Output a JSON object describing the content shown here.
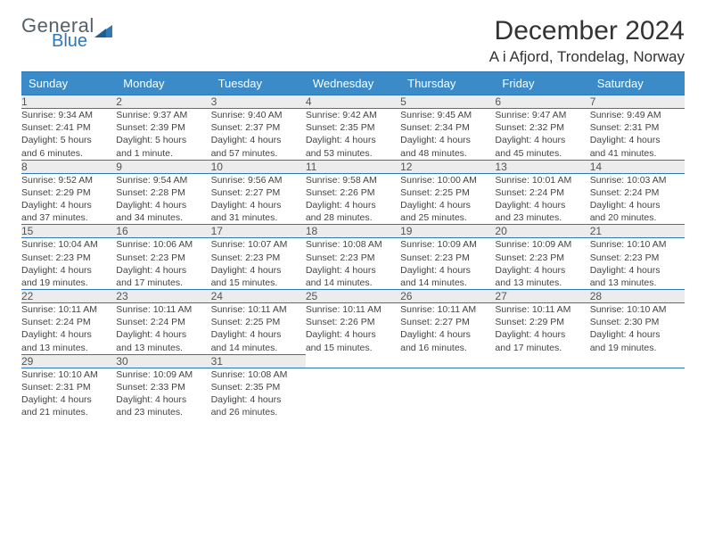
{
  "logo": {
    "word1": "General",
    "word2": "Blue"
  },
  "title": "December 2024",
  "location": "A i Afjord, Trondelag, Norway",
  "colors": {
    "header_bg": "#3b8bc9",
    "header_text": "#ffffff",
    "rule": "#2f77b9",
    "daynum_bg": "#ececec",
    "body_text": "#444444",
    "logo_gray": "#55606a",
    "logo_blue": "#2f77b9",
    "page_bg": "#ffffff"
  },
  "day_headers": [
    "Sunday",
    "Monday",
    "Tuesday",
    "Wednesday",
    "Thursday",
    "Friday",
    "Saturday"
  ],
  "weeks": [
    [
      {
        "n": "1",
        "sr": "Sunrise: 9:34 AM",
        "ss": "Sunset: 2:41 PM",
        "d1": "Daylight: 5 hours",
        "d2": "and 6 minutes."
      },
      {
        "n": "2",
        "sr": "Sunrise: 9:37 AM",
        "ss": "Sunset: 2:39 PM",
        "d1": "Daylight: 5 hours",
        "d2": "and 1 minute."
      },
      {
        "n": "3",
        "sr": "Sunrise: 9:40 AM",
        "ss": "Sunset: 2:37 PM",
        "d1": "Daylight: 4 hours",
        "d2": "and 57 minutes."
      },
      {
        "n": "4",
        "sr": "Sunrise: 9:42 AM",
        "ss": "Sunset: 2:35 PM",
        "d1": "Daylight: 4 hours",
        "d2": "and 53 minutes."
      },
      {
        "n": "5",
        "sr": "Sunrise: 9:45 AM",
        "ss": "Sunset: 2:34 PM",
        "d1": "Daylight: 4 hours",
        "d2": "and 48 minutes."
      },
      {
        "n": "6",
        "sr": "Sunrise: 9:47 AM",
        "ss": "Sunset: 2:32 PM",
        "d1": "Daylight: 4 hours",
        "d2": "and 45 minutes."
      },
      {
        "n": "7",
        "sr": "Sunrise: 9:49 AM",
        "ss": "Sunset: 2:31 PM",
        "d1": "Daylight: 4 hours",
        "d2": "and 41 minutes."
      }
    ],
    [
      {
        "n": "8",
        "sr": "Sunrise: 9:52 AM",
        "ss": "Sunset: 2:29 PM",
        "d1": "Daylight: 4 hours",
        "d2": "and 37 minutes."
      },
      {
        "n": "9",
        "sr": "Sunrise: 9:54 AM",
        "ss": "Sunset: 2:28 PM",
        "d1": "Daylight: 4 hours",
        "d2": "and 34 minutes."
      },
      {
        "n": "10",
        "sr": "Sunrise: 9:56 AM",
        "ss": "Sunset: 2:27 PM",
        "d1": "Daylight: 4 hours",
        "d2": "and 31 minutes."
      },
      {
        "n": "11",
        "sr": "Sunrise: 9:58 AM",
        "ss": "Sunset: 2:26 PM",
        "d1": "Daylight: 4 hours",
        "d2": "and 28 minutes."
      },
      {
        "n": "12",
        "sr": "Sunrise: 10:00 AM",
        "ss": "Sunset: 2:25 PM",
        "d1": "Daylight: 4 hours",
        "d2": "and 25 minutes."
      },
      {
        "n": "13",
        "sr": "Sunrise: 10:01 AM",
        "ss": "Sunset: 2:24 PM",
        "d1": "Daylight: 4 hours",
        "d2": "and 23 minutes."
      },
      {
        "n": "14",
        "sr": "Sunrise: 10:03 AM",
        "ss": "Sunset: 2:24 PM",
        "d1": "Daylight: 4 hours",
        "d2": "and 20 minutes."
      }
    ],
    [
      {
        "n": "15",
        "sr": "Sunrise: 10:04 AM",
        "ss": "Sunset: 2:23 PM",
        "d1": "Daylight: 4 hours",
        "d2": "and 19 minutes."
      },
      {
        "n": "16",
        "sr": "Sunrise: 10:06 AM",
        "ss": "Sunset: 2:23 PM",
        "d1": "Daylight: 4 hours",
        "d2": "and 17 minutes."
      },
      {
        "n": "17",
        "sr": "Sunrise: 10:07 AM",
        "ss": "Sunset: 2:23 PM",
        "d1": "Daylight: 4 hours",
        "d2": "and 15 minutes."
      },
      {
        "n": "18",
        "sr": "Sunrise: 10:08 AM",
        "ss": "Sunset: 2:23 PM",
        "d1": "Daylight: 4 hours",
        "d2": "and 14 minutes."
      },
      {
        "n": "19",
        "sr": "Sunrise: 10:09 AM",
        "ss": "Sunset: 2:23 PM",
        "d1": "Daylight: 4 hours",
        "d2": "and 14 minutes."
      },
      {
        "n": "20",
        "sr": "Sunrise: 10:09 AM",
        "ss": "Sunset: 2:23 PM",
        "d1": "Daylight: 4 hours",
        "d2": "and 13 minutes."
      },
      {
        "n": "21",
        "sr": "Sunrise: 10:10 AM",
        "ss": "Sunset: 2:23 PM",
        "d1": "Daylight: 4 hours",
        "d2": "and 13 minutes."
      }
    ],
    [
      {
        "n": "22",
        "sr": "Sunrise: 10:11 AM",
        "ss": "Sunset: 2:24 PM",
        "d1": "Daylight: 4 hours",
        "d2": "and 13 minutes."
      },
      {
        "n": "23",
        "sr": "Sunrise: 10:11 AM",
        "ss": "Sunset: 2:24 PM",
        "d1": "Daylight: 4 hours",
        "d2": "and 13 minutes."
      },
      {
        "n": "24",
        "sr": "Sunrise: 10:11 AM",
        "ss": "Sunset: 2:25 PM",
        "d1": "Daylight: 4 hours",
        "d2": "and 14 minutes."
      },
      {
        "n": "25",
        "sr": "Sunrise: 10:11 AM",
        "ss": "Sunset: 2:26 PM",
        "d1": "Daylight: 4 hours",
        "d2": "and 15 minutes."
      },
      {
        "n": "26",
        "sr": "Sunrise: 10:11 AM",
        "ss": "Sunset: 2:27 PM",
        "d1": "Daylight: 4 hours",
        "d2": "and 16 minutes."
      },
      {
        "n": "27",
        "sr": "Sunrise: 10:11 AM",
        "ss": "Sunset: 2:29 PM",
        "d1": "Daylight: 4 hours",
        "d2": "and 17 minutes."
      },
      {
        "n": "28",
        "sr": "Sunrise: 10:10 AM",
        "ss": "Sunset: 2:30 PM",
        "d1": "Daylight: 4 hours",
        "d2": "and 19 minutes."
      }
    ],
    [
      {
        "n": "29",
        "sr": "Sunrise: 10:10 AM",
        "ss": "Sunset: 2:31 PM",
        "d1": "Daylight: 4 hours",
        "d2": "and 21 minutes."
      },
      {
        "n": "30",
        "sr": "Sunrise: 10:09 AM",
        "ss": "Sunset: 2:33 PM",
        "d1": "Daylight: 4 hours",
        "d2": "and 23 minutes."
      },
      {
        "n": "31",
        "sr": "Sunrise: 10:08 AM",
        "ss": "Sunset: 2:35 PM",
        "d1": "Daylight: 4 hours",
        "d2": "and 26 minutes."
      },
      {
        "n": "",
        "sr": "",
        "ss": "",
        "d1": "",
        "d2": ""
      },
      {
        "n": "",
        "sr": "",
        "ss": "",
        "d1": "",
        "d2": ""
      },
      {
        "n": "",
        "sr": "",
        "ss": "",
        "d1": "",
        "d2": ""
      },
      {
        "n": "",
        "sr": "",
        "ss": "",
        "d1": "",
        "d2": ""
      }
    ]
  ]
}
